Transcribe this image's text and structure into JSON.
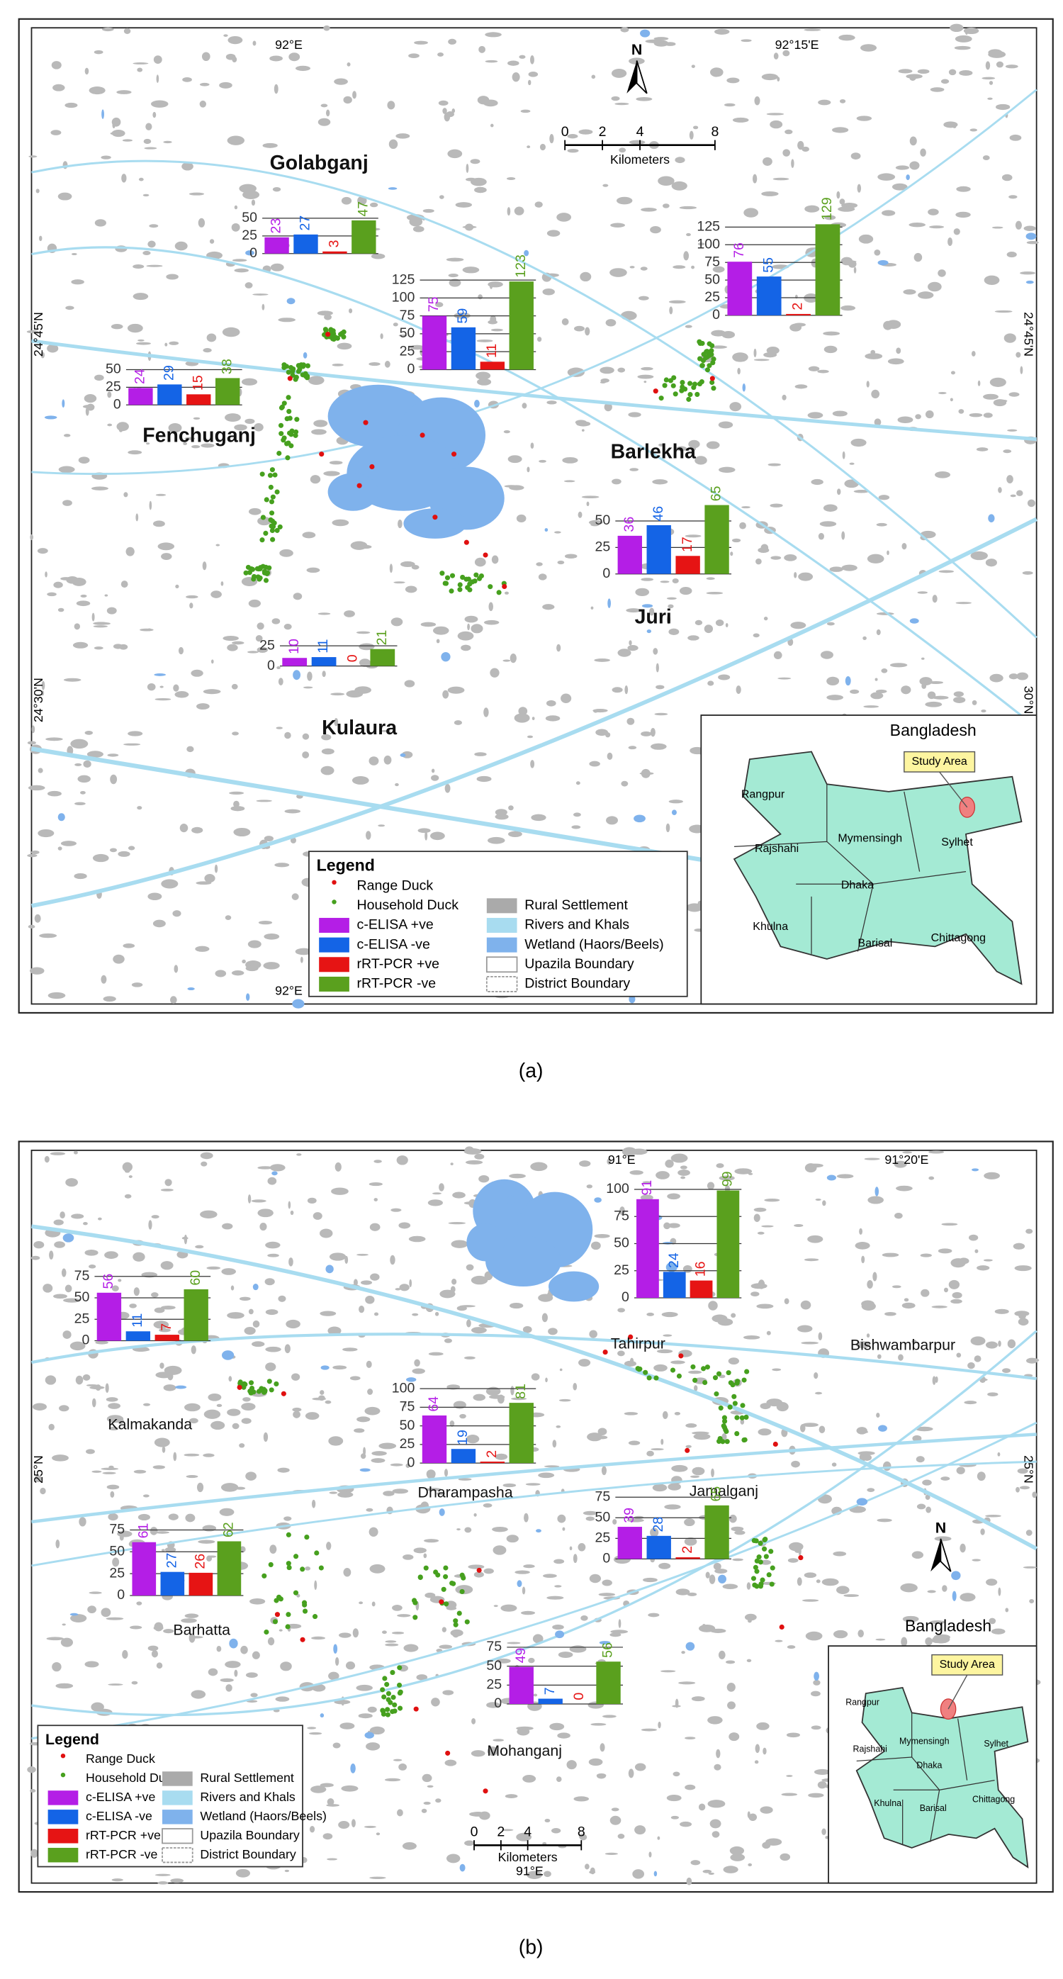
{
  "panels": [
    {
      "caption": "(a)",
      "coords": {
        "top": [
          "92°E",
          "92°15'E"
        ],
        "bottom": [
          "92°E"
        ],
        "left": [
          "24°45'N",
          "24°30'N"
        ],
        "right": [
          "24°45'N",
          "30°N"
        ]
      },
      "places": [
        "Golabganj",
        "Fenchuganj",
        "Barlekha",
        "Juri",
        "Kulaura"
      ],
      "north": "N",
      "scale_bar": {
        "ticks": [
          0,
          2,
          4,
          8
        ],
        "label": "Kilometers"
      },
      "charts": [
        {
          "values": [
            23,
            27,
            3,
            47
          ],
          "ylim": [
            0,
            50
          ],
          "yticks": [
            0,
            25,
            50
          ]
        },
        {
          "values": [
            75,
            59,
            11,
            123
          ],
          "ylim": [
            0,
            125
          ],
          "yticks": [
            0,
            25,
            50,
            75,
            100,
            125
          ]
        },
        {
          "values": [
            76,
            55,
            2,
            129
          ],
          "ylim": [
            0,
            125
          ],
          "yticks": [
            0,
            25,
            50,
            75,
            100,
            125
          ]
        },
        {
          "values": [
            24,
            29,
            15,
            38
          ],
          "ylim": [
            0,
            50
          ],
          "yticks": [
            0,
            25,
            50
          ]
        },
        {
          "values": [
            36,
            46,
            17,
            65
          ],
          "ylim": [
            0,
            50
          ],
          "yticks": [
            0,
            25,
            50
          ]
        },
        {
          "values": [
            10,
            11,
            0,
            21
          ],
          "ylim": [
            0,
            25
          ],
          "yticks": [
            0,
            25
          ]
        }
      ],
      "legend": {
        "title": "Legend",
        "points": [
          "Range Duck",
          "Household Duck"
        ],
        "series": [
          {
            "name": "c-ELISA +ve",
            "color": "#b41ee6"
          },
          {
            "name": "c-ELISA -ve",
            "color": "#1464e6"
          },
          {
            "name": "rRT-PCR +ve",
            "color": "#e61414"
          },
          {
            "name": "rRT-PCR -ve",
            "color": "#5aa01e"
          }
        ],
        "layers": [
          "Rural Settlement",
          "Rivers and Khals",
          "Wetland (Haors/Beels)",
          "Upazila Boundary",
          "District Boundary"
        ]
      },
      "inset": {
        "title": "Bangladesh",
        "callout": "Study Area",
        "divisions": [
          "Rangpur",
          "Rajshahi",
          "Mymensingh",
          "Sylhet",
          "Dhaka",
          "Khulna",
          "Barisal",
          "Chittagong"
        ]
      }
    },
    {
      "caption": "(b)",
      "coords": {
        "top": [
          "91°E",
          "91°20'E"
        ],
        "bottom": [
          "91°E"
        ],
        "left": [
          "25°N"
        ],
        "right": [
          "25°N"
        ]
      },
      "places": [
        "Tahirpur",
        "Bishwambarpur",
        "Kalmakanda",
        "Dharampasha",
        "Jamalganj",
        "Barhatta",
        "Mohanganj"
      ],
      "north": "N",
      "scale_bar": {
        "ticks": [
          0,
          2,
          4,
          8
        ],
        "label": "Kilometers"
      },
      "charts": [
        {
          "values": [
            56,
            11,
            7,
            60
          ],
          "ylim": [
            0,
            75
          ],
          "yticks": [
            0,
            25,
            50,
            75
          ]
        },
        {
          "values": [
            91,
            24,
            16,
            99
          ],
          "ylim": [
            0,
            100
          ],
          "yticks": [
            0,
            25,
            50,
            75,
            100
          ]
        },
        {
          "values": [
            64,
            19,
            2,
            81
          ],
          "ylim": [
            0,
            100
          ],
          "yticks": [
            0,
            25,
            50,
            75,
            100
          ]
        },
        {
          "values": [
            39,
            28,
            2,
            65
          ],
          "ylim": [
            0,
            75
          ],
          "yticks": [
            0,
            25,
            50,
            75
          ]
        },
        {
          "values": [
            61,
            27,
            26,
            62
          ],
          "ylim": [
            0,
            75
          ],
          "yticks": [
            0,
            25,
            50,
            75
          ]
        },
        {
          "values": [
            49,
            7,
            0,
            56
          ],
          "ylim": [
            0,
            75
          ],
          "yticks": [
            0,
            25,
            50,
            75
          ]
        }
      ],
      "legend": {
        "title": "Legend",
        "points": [
          "Range Duck",
          "Household Duck"
        ],
        "series": [
          {
            "name": "c-ELISA +ve",
            "color": "#b41ee6"
          },
          {
            "name": "c-ELISA -ve",
            "color": "#1464e6"
          },
          {
            "name": "rRT-PCR +ve",
            "color": "#e61414"
          },
          {
            "name": "rRT-PCR -ve",
            "color": "#5aa01e"
          }
        ],
        "layers": [
          "Rural Settlement",
          "Rivers and Khals",
          "Wetland (Haors/Beels)",
          "Upazila Boundary",
          "District Boundary"
        ]
      },
      "inset": {
        "title": "Bangladesh",
        "callout": "Study Area",
        "divisions": [
          "Rangpur",
          "Rajshahi",
          "Mymensingh",
          "Sylhet",
          "Dhaka",
          "Khulna",
          "Barisal",
          "Chittagong"
        ]
      }
    }
  ]
}
